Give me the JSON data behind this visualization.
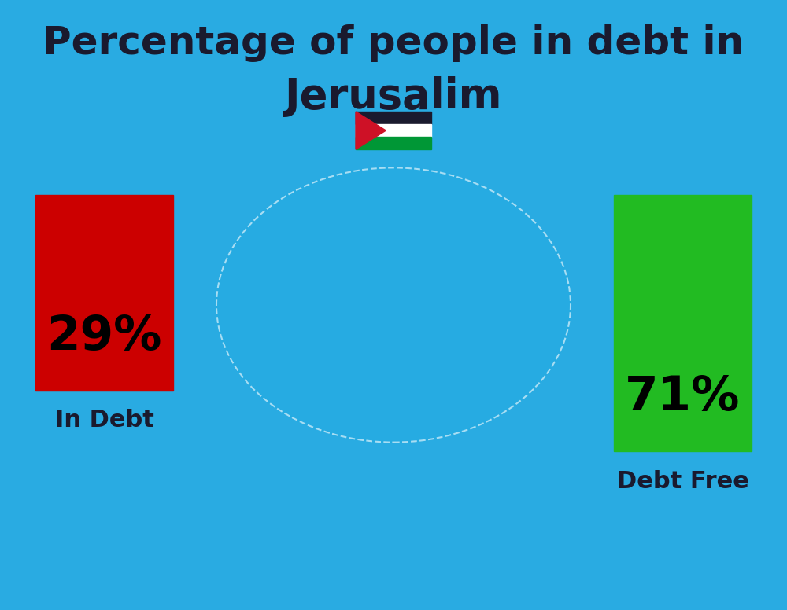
{
  "title_line1": "Percentage of people in debt in",
  "title_line2": "Jerusalim",
  "title_fontsize": 36,
  "title_color": "#1a1a2e",
  "subtitle_fontsize": 38,
  "background_color": "#29ABE2",
  "bar1_value": 29,
  "bar1_label": "29%",
  "bar1_color": "#CC0000",
  "bar1_text": "In Debt",
  "bar2_value": 71,
  "bar2_label": "71%",
  "bar2_color": "#22BB22",
  "bar2_text": "Debt Free",
  "bar_label_fontsize": 44,
  "bar_sublabel_fontsize": 22,
  "label_color": "#1a1a2e",
  "percent_color": "#000000"
}
